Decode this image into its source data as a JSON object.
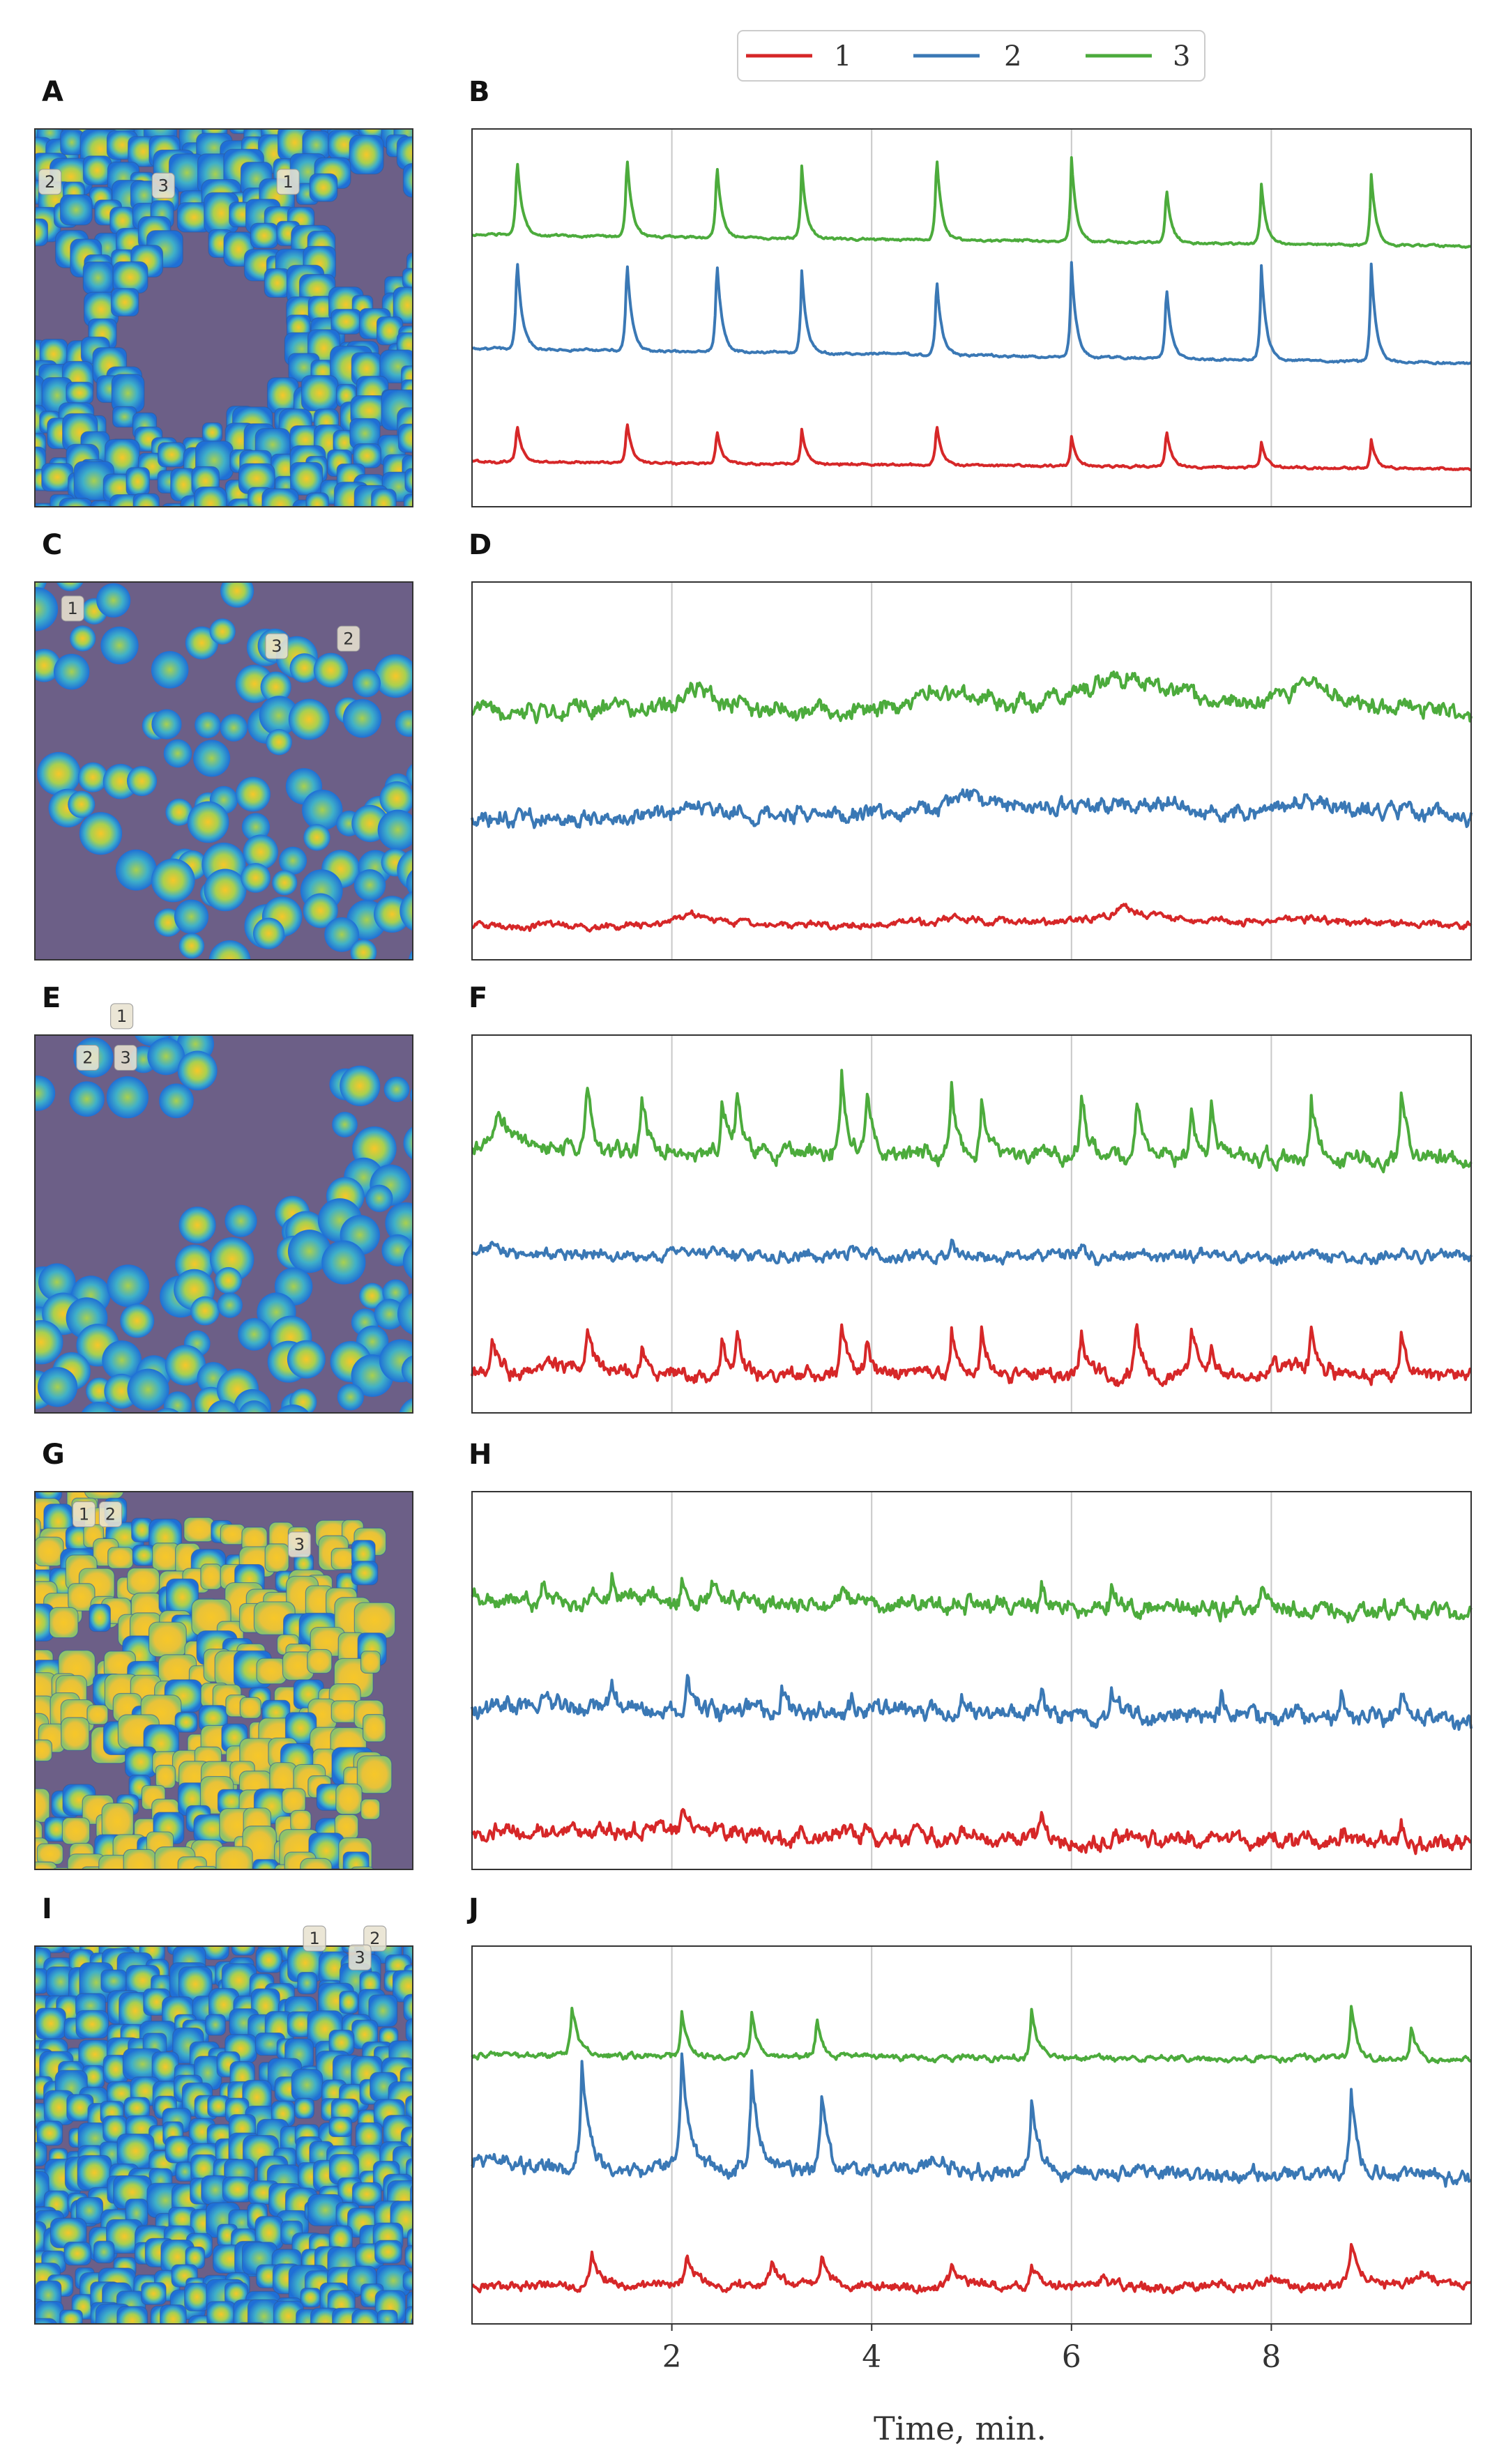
{
  "figure": {
    "legend": [
      {
        "label": "1",
        "color": "#d62728"
      },
      {
        "label": "2",
        "color": "#3a78b5"
      },
      {
        "label": "3",
        "color": "#4cab3c"
      }
    ],
    "x_axis_title": "Time, min."
  },
  "colors": {
    "map_background": "#6c5f87",
    "cell_low": "#1f6fd6",
    "cell_mid": "#62c1b6",
    "cell_high": "#f7c729",
    "grid": "#c8c8c8",
    "frame": "#333333"
  },
  "map_panels": [
    {
      "letter": "A",
      "style": "dense-regions",
      "seed": 11,
      "rois": [
        {
          "label": "2",
          "icon": "roi-marker-icon"
        },
        {
          "label": "3",
          "icon": "roi-marker-icon"
        },
        {
          "label": "1",
          "icon": "roi-marker-icon"
        }
      ]
    },
    {
      "letter": "C",
      "style": "blobs",
      "seed": 23,
      "rois": [
        {
          "label": "1",
          "icon": "roi-marker-icon"
        },
        {
          "label": "3",
          "icon": "roi-marker-icon"
        },
        {
          "label": "2",
          "icon": "roi-marker-icon"
        }
      ]
    },
    {
      "letter": "E",
      "style": "sparse-blobs",
      "seed": 37,
      "rois": [
        {
          "label": "1",
          "icon": "roi-marker-icon"
        },
        {
          "label": "2",
          "icon": "roi-marker-icon"
        },
        {
          "label": "3",
          "icon": "roi-marker-icon"
        }
      ]
    },
    {
      "letter": "G",
      "style": "yellow-regions",
      "seed": 41,
      "rois": [
        {
          "label": "1",
          "icon": "roi-marker-icon"
        },
        {
          "label": "2",
          "icon": "roi-marker-icon"
        },
        {
          "label": "3",
          "icon": "roi-marker-icon"
        }
      ]
    },
    {
      "letter": "I",
      "style": "full-field",
      "seed": 53,
      "rois": [
        {
          "label": "1",
          "icon": "roi-marker-icon"
        },
        {
          "label": "2",
          "icon": "roi-marker-icon"
        },
        {
          "label": "3",
          "icon": "roi-marker-icon"
        }
      ]
    }
  ],
  "chart_data": [
    {
      "panel": "B",
      "type": "line",
      "xlim": [
        0,
        10
      ],
      "ylim": [
        0,
        1
      ],
      "xticks": [
        2,
        4,
        6,
        8
      ],
      "grid": "vertical",
      "xlabel": "Time, min.",
      "ylabel": "",
      "series": [
        {
          "name": "1",
          "color": "#d62728",
          "offset": 0.12,
          "drift": -0.02,
          "noise": 0.002,
          "seed": 101,
          "spikes": [
            [
              0.45,
              0.1,
              0.05
            ],
            [
              1.55,
              0.11,
              0.05
            ],
            [
              2.45,
              0.09,
              0.05
            ],
            [
              3.3,
              0.09,
              0.05
            ],
            [
              4.65,
              0.11,
              0.05
            ],
            [
              6.0,
              0.08,
              0.05
            ],
            [
              6.95,
              0.1,
              0.05
            ],
            [
              7.9,
              0.07,
              0.05
            ],
            [
              9.0,
              0.08,
              0.05
            ]
          ]
        },
        {
          "name": "2",
          "color": "#3a78b5",
          "offset": 0.42,
          "drift": -0.04,
          "noise": 0.002,
          "seed": 102,
          "spikes": [
            [
              0.45,
              0.25,
              0.05
            ],
            [
              1.55,
              0.25,
              0.05
            ],
            [
              2.45,
              0.25,
              0.05
            ],
            [
              3.3,
              0.22,
              0.05
            ],
            [
              4.65,
              0.21,
              0.05
            ],
            [
              6.0,
              0.25,
              0.05
            ],
            [
              6.95,
              0.2,
              0.05
            ],
            [
              7.9,
              0.25,
              0.05
            ],
            [
              9.0,
              0.26,
              0.05
            ]
          ]
        },
        {
          "name": "3",
          "color": "#4cab3c",
          "offset": 0.72,
          "drift": -0.03,
          "noise": 0.002,
          "seed": 103,
          "spikes": [
            [
              0.45,
              0.21,
              0.05
            ],
            [
              1.55,
              0.22,
              0.05
            ],
            [
              2.45,
              0.2,
              0.05
            ],
            [
              3.3,
              0.19,
              0.05
            ],
            [
              4.65,
              0.23,
              0.05
            ],
            [
              6.0,
              0.22,
              0.05
            ],
            [
              6.95,
              0.15,
              0.05
            ],
            [
              7.9,
              0.16,
              0.05
            ],
            [
              9.0,
              0.19,
              0.05
            ]
          ]
        }
      ]
    },
    {
      "panel": "D",
      "type": "line",
      "xlim": [
        0,
        10
      ],
      "ylim": [
        0,
        1
      ],
      "xticks": [
        2,
        4,
        6,
        8
      ],
      "grid": "vertical",
      "xlabel": "Time, min.",
      "ylabel": "",
      "series": [
        {
          "name": "1",
          "color": "#d62728",
          "offset": 0.09,
          "drift": 0.0,
          "noise": 0.006,
          "seed": 201,
          "spikes": [
            [
              2.2,
              0.04,
              0.3
            ],
            [
              4.8,
              0.02,
              1.0
            ],
            [
              6.5,
              0.04,
              0.7
            ],
            [
              8.2,
              0.02,
              0.6
            ]
          ]
        },
        {
          "name": "2",
          "color": "#3a78b5",
          "offset": 0.38,
          "drift": 0.0,
          "noise": 0.014,
          "seed": 202,
          "spikes": [
            [
              2.2,
              0.03,
              0.4
            ],
            [
              4.9,
              0.05,
              0.8
            ],
            [
              6.5,
              0.04,
              0.8
            ],
            [
              8.3,
              0.04,
              0.8
            ]
          ]
        },
        {
          "name": "3",
          "color": "#4cab3c",
          "offset": 0.65,
          "drift": 0.0,
          "noise": 0.015,
          "seed": 203,
          "spikes": [
            [
              2.2,
              0.08,
              0.35
            ],
            [
              4.6,
              0.06,
              1.0
            ],
            [
              6.4,
              0.1,
              1.0
            ],
            [
              8.3,
              0.07,
              0.5
            ],
            [
              1.0,
              0.02,
              0.8
            ]
          ]
        }
      ]
    },
    {
      "panel": "F",
      "type": "line",
      "xlim": [
        0,
        10
      ],
      "ylim": [
        0,
        1
      ],
      "xticks": [
        2,
        4,
        6,
        8
      ],
      "grid": "vertical",
      "xlabel": "Time, min.",
      "ylabel": "",
      "series": [
        {
          "name": "1",
          "color": "#d62728",
          "offset": 0.1,
          "drift": 0.0,
          "noise": 0.012,
          "seed": 301,
          "spikes": [
            [
              0.2,
              0.1,
              0.08
            ],
            [
              1.15,
              0.11,
              0.06
            ],
            [
              1.7,
              0.08,
              0.06
            ],
            [
              2.5,
              0.1,
              0.06
            ],
            [
              2.65,
              0.11,
              0.06
            ],
            [
              3.7,
              0.14,
              0.06
            ],
            [
              3.95,
              0.09,
              0.06
            ],
            [
              4.8,
              0.13,
              0.06
            ],
            [
              5.1,
              0.11,
              0.06
            ],
            [
              6.1,
              0.13,
              0.06
            ],
            [
              6.65,
              0.13,
              0.06
            ],
            [
              7.2,
              0.12,
              0.06
            ],
            [
              7.4,
              0.09,
              0.06
            ],
            [
              8.4,
              0.12,
              0.06
            ],
            [
              9.3,
              0.13,
              0.06
            ],
            [
              0.8,
              0.04,
              0.4
            ],
            [
              8.0,
              0.03,
              0.4
            ]
          ]
        },
        {
          "name": "2",
          "color": "#3a78b5",
          "offset": 0.42,
          "drift": -0.01,
          "noise": 0.01,
          "seed": 302,
          "spikes": [
            [
              0.2,
              0.03,
              0.1
            ],
            [
              2.1,
              0.03,
              0.1
            ],
            [
              3.8,
              0.03,
              0.06
            ],
            [
              4.8,
              0.03,
              0.06
            ],
            [
              6.1,
              0.03,
              0.06
            ],
            [
              7.3,
              0.03,
              0.06
            ],
            [
              8.4,
              0.03,
              0.06
            ],
            [
              9.3,
              0.03,
              0.06
            ]
          ]
        },
        {
          "name": "3",
          "color": "#4cab3c",
          "offset": 0.7,
          "drift": -0.03,
          "noise": 0.014,
          "seed": 303,
          "spikes": [
            [
              0.25,
              0.12,
              0.15
            ],
            [
              1.15,
              0.16,
              0.06
            ],
            [
              1.7,
              0.13,
              0.06
            ],
            [
              2.5,
              0.13,
              0.06
            ],
            [
              2.65,
              0.17,
              0.06
            ],
            [
              3.7,
              0.19,
              0.06
            ],
            [
              3.95,
              0.16,
              0.06
            ],
            [
              4.8,
              0.17,
              0.06
            ],
            [
              5.1,
              0.16,
              0.06
            ],
            [
              6.1,
              0.17,
              0.06
            ],
            [
              6.65,
              0.16,
              0.06
            ],
            [
              7.2,
              0.14,
              0.06
            ],
            [
              7.4,
              0.15,
              0.06
            ],
            [
              8.4,
              0.16,
              0.06
            ],
            [
              9.3,
              0.18,
              0.06
            ]
          ]
        }
      ]
    },
    {
      "panel": "H",
      "type": "line",
      "xlim": [
        0,
        10
      ],
      "ylim": [
        0,
        1
      ],
      "xticks": [
        2,
        4,
        6,
        8
      ],
      "grid": "vertical",
      "xlabel": "Time, min.",
      "ylabel": "",
      "series": [
        {
          "name": "1",
          "color": "#d62728",
          "offset": 0.1,
          "drift": -0.03,
          "noise": 0.014,
          "seed": 401,
          "spikes": [
            [
              2.1,
              0.06,
              0.06
            ],
            [
              4.9,
              0.04,
              0.06
            ],
            [
              5.7,
              0.05,
              0.06
            ],
            [
              8.7,
              0.04,
              0.06
            ],
            [
              9.3,
              0.05,
              0.06
            ],
            [
              1.8,
              0.02,
              0.4
            ]
          ]
        },
        {
          "name": "2",
          "color": "#3a78b5",
          "offset": 0.43,
          "drift": -0.03,
          "noise": 0.015,
          "seed": 402,
          "spikes": [
            [
              0.7,
              0.05,
              0.05
            ],
            [
              1.4,
              0.05,
              0.05
            ],
            [
              2.15,
              0.09,
              0.05
            ],
            [
              3.1,
              0.06,
              0.05
            ],
            [
              3.8,
              0.05,
              0.05
            ],
            [
              4.9,
              0.05,
              0.05
            ],
            [
              5.7,
              0.07,
              0.05
            ],
            [
              6.4,
              0.08,
              0.05
            ],
            [
              7.5,
              0.05,
              0.05
            ],
            [
              8.7,
              0.06,
              0.05
            ],
            [
              9.3,
              0.08,
              0.05
            ]
          ]
        },
        {
          "name": "3",
          "color": "#4cab3c",
          "offset": 0.72,
          "drift": -0.04,
          "noise": 0.014,
          "seed": 403,
          "spikes": [
            [
              0.7,
              0.06,
              0.05
            ],
            [
              1.4,
              0.05,
              0.05
            ],
            [
              2.1,
              0.06,
              0.05
            ],
            [
              2.4,
              0.05,
              0.05
            ],
            [
              3.7,
              0.04,
              0.05
            ],
            [
              5.7,
              0.05,
              0.05
            ],
            [
              6.4,
              0.05,
              0.05
            ],
            [
              7.9,
              0.05,
              0.05
            ],
            [
              9.3,
              0.04,
              0.05
            ]
          ]
        }
      ]
    },
    {
      "panel": "J",
      "type": "line",
      "xlim": [
        0,
        10
      ],
      "ylim": [
        0,
        1
      ],
      "xticks": [
        2,
        4,
        6,
        8
      ],
      "grid": "vertical",
      "xlabel": "Time, min.",
      "ylabel": "",
      "series": [
        {
          "name": "1",
          "color": "#d62728",
          "offset": 0.1,
          "drift": 0.0,
          "noise": 0.008,
          "seed": 501,
          "spikes": [
            [
              1.2,
              0.09,
              0.1
            ],
            [
              2.15,
              0.08,
              0.1
            ],
            [
              3.0,
              0.05,
              0.1
            ],
            [
              3.5,
              0.07,
              0.08
            ],
            [
              4.8,
              0.05,
              0.1
            ],
            [
              5.6,
              0.07,
              0.06
            ],
            [
              6.3,
              0.03,
              0.1
            ],
            [
              8.0,
              0.03,
              0.1
            ],
            [
              8.8,
              0.1,
              0.1
            ],
            [
              9.5,
              0.03,
              0.2
            ]
          ]
        },
        {
          "name": "2",
          "color": "#3a78b5",
          "offset": 0.42,
          "drift": -0.03,
          "noise": 0.013,
          "seed": 502,
          "spikes": [
            [
              1.1,
              0.27,
              0.07
            ],
            [
              2.1,
              0.28,
              0.07
            ],
            [
              2.8,
              0.26,
              0.07
            ],
            [
              3.5,
              0.2,
              0.07
            ],
            [
              4.6,
              0.04,
              0.1
            ],
            [
              5.6,
              0.19,
              0.07
            ],
            [
              8.8,
              0.22,
              0.07
            ]
          ]
        },
        {
          "name": "3",
          "color": "#4cab3c",
          "offset": 0.71,
          "drift": -0.01,
          "noise": 0.005,
          "seed": 503,
          "spikes": [
            [
              1.0,
              0.13,
              0.07
            ],
            [
              2.1,
              0.12,
              0.06
            ],
            [
              2.8,
              0.12,
              0.06
            ],
            [
              3.45,
              0.1,
              0.06
            ],
            [
              5.6,
              0.13,
              0.06
            ],
            [
              8.8,
              0.14,
              0.06
            ],
            [
              9.4,
              0.08,
              0.06
            ]
          ]
        }
      ]
    }
  ]
}
